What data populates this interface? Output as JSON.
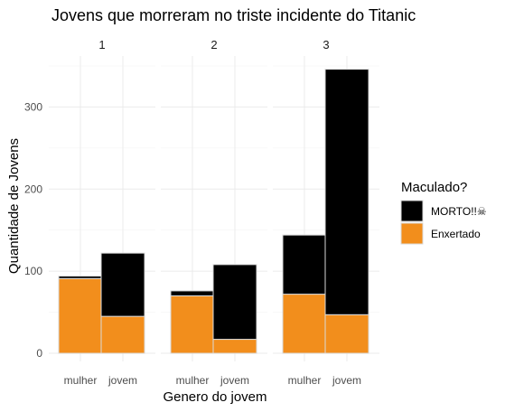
{
  "chart_data": {
    "type": "bar",
    "stacked": true,
    "faceted": true,
    "title": "Jovens que morreram no triste incidente do Titanic",
    "xlabel": "Genero do jovem",
    "ylabel": "Quantidade de Jovens",
    "ylim": [
      0,
      360
    ],
    "yticks": [
      0,
      100,
      200,
      300
    ],
    "grid": true,
    "legend": {
      "title": "Maculado?",
      "position": "right",
      "entries": [
        {
          "label": "MORTO!!☠",
          "color": "#000000"
        },
        {
          "label": "Enxertado",
          "color": "#f28e1c"
        }
      ]
    },
    "categories": [
      "mulher",
      "jovem"
    ],
    "facets": [
      {
        "label": "1",
        "series": [
          {
            "name": "Enxertado",
            "values": [
              91,
              45
            ]
          },
          {
            "name": "MORTO!!☠",
            "values": [
              3,
              77
            ]
          }
        ]
      },
      {
        "label": "2",
        "series": [
          {
            "name": "Enxertado",
            "values": [
              70,
              17
            ]
          },
          {
            "name": "MORTO!!☠",
            "values": [
              6,
              91
            ]
          }
        ]
      },
      {
        "label": "3",
        "series": [
          {
            "name": "Enxertado",
            "values": [
              72,
              47
            ]
          },
          {
            "name": "MORTO!!☠",
            "values": [
              72,
              299
            ]
          }
        ]
      }
    ]
  }
}
